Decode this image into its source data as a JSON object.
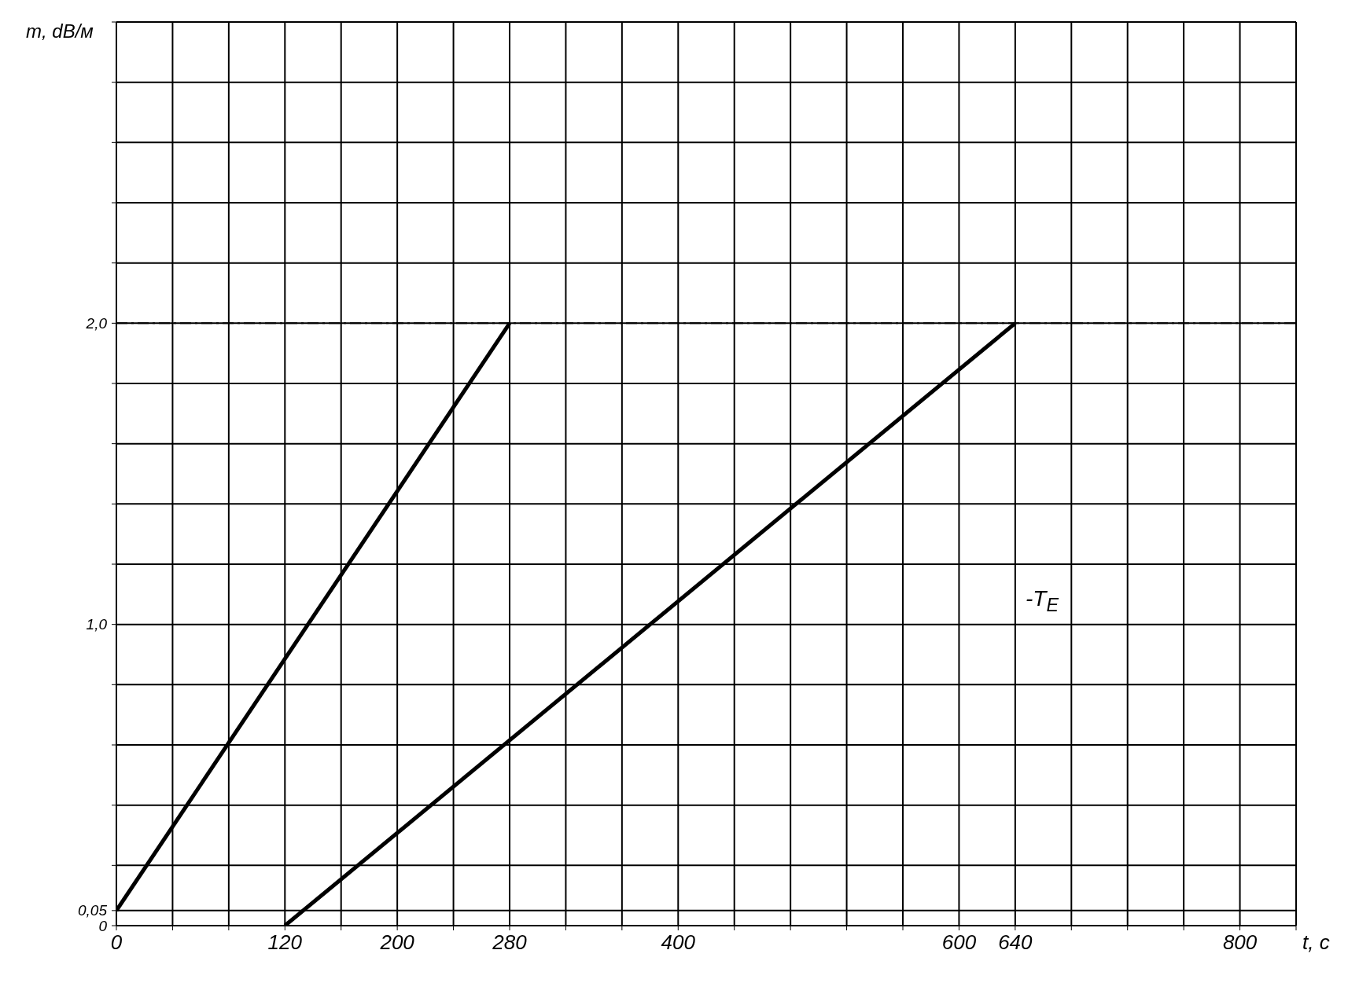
{
  "chart_data": {
    "type": "line",
    "xlabel": "t, c",
    "ylabel": "m, dB/м",
    "series": [
      {
        "x": [
          0,
          280
        ],
        "values": [
          0.05,
          2.0
        ],
        "color": "#000000"
      },
      {
        "x": [
          120,
          640
        ],
        "values": [
          0,
          2.0
        ],
        "color": "#000000"
      }
    ],
    "xlim": [
      0,
      840
    ],
    "xticks": [
      0,
      {
        "value": 40,
        "label": null
      },
      {
        "value": 80,
        "label": null
      },
      120,
      {
        "value": 160,
        "label": null
      },
      200,
      {
        "value": 240,
        "label": null
      },
      280,
      {
        "value": 320,
        "label": null
      },
      {
        "value": 360,
        "label": null
      },
      400,
      {
        "value": 440,
        "label": null
      },
      {
        "value": 480,
        "label": null
      },
      {
        "value": 520,
        "label": null
      },
      {
        "value": 560,
        "label": null
      },
      600,
      640,
      {
        "value": 680,
        "label": null
      },
      {
        "value": 720,
        "label": null
      },
      {
        "value": 760,
        "label": null
      },
      800,
      {
        "value": 840,
        "label": null
      }
    ],
    "ylim": [
      0,
      3
    ],
    "yticks": [
      0,
      {
        "value": 0.05,
        "label": "0,05"
      },
      {
        "value": 0.2,
        "label": null
      },
      {
        "value": 0.4,
        "label": null
      },
      {
        "value": 0.6,
        "label": null
      },
      {
        "value": 0.8,
        "label": null
      },
      {
        "value": 1.0,
        "label": "1,0"
      },
      {
        "value": 1.2,
        "label": null
      },
      {
        "value": 1.4,
        "label": null
      },
      {
        "value": 1.6,
        "label": null
      },
      {
        "value": 1.8,
        "label": null
      },
      {
        "value": 2.0,
        "label": "2,0"
      },
      {
        "value": 2.2,
        "label": null
      },
      {
        "value": 2.4,
        "label": null
      },
      {
        "value": 2.6,
        "label": null
      },
      {
        "value": 2.8,
        "label": null
      },
      {
        "value": 3.0,
        "label": null
      }
    ],
    "ref_lines": [
      {
        "axis": "y",
        "value": 2.0,
        "label": null,
        "line_style": "dashdot"
      }
    ],
    "annotations": [
      "-T$_{E}$"
    ],
    "grid": true,
    "marker": "none",
    "line_style": "solid"
  }
}
